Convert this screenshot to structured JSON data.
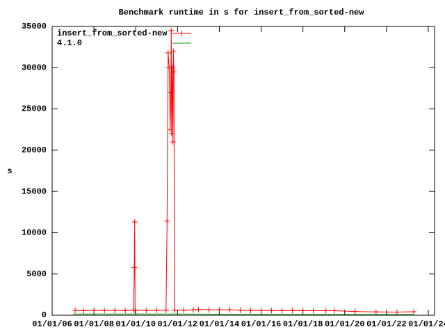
{
  "chart_data": {
    "type": "line",
    "title": "Benchmark runtime in s for insert_from_sorted-new",
    "y_label": "s",
    "xlim": [
      2006,
      2024.3
    ],
    "xticks": [
      {
        "value": 2006,
        "label": "01/01/06"
      },
      {
        "value": 2008,
        "label": "01/01/08"
      },
      {
        "value": 2010,
        "label": "01/01/10"
      },
      {
        "value": 2012,
        "label": "01/01/12"
      },
      {
        "value": 2014,
        "label": "01/01/14"
      },
      {
        "value": 2016,
        "label": "01/01/16"
      },
      {
        "value": 2018,
        "label": "01/01/18"
      },
      {
        "value": 2020,
        "label": "01/01/20"
      },
      {
        "value": 2022,
        "label": "01/01/22"
      },
      {
        "value": 2024,
        "label": "01/01/24"
      }
    ],
    "ylim": [
      0,
      35000
    ],
    "yticks": [
      0,
      5000,
      10000,
      15000,
      20000,
      25000,
      30000,
      35000
    ],
    "grid": false,
    "legend": "top-left",
    "series": [
      {
        "name": "insert_from_sorted-new",
        "color": "#ff0000",
        "markers": true,
        "x": [
          2007.1,
          2007.5,
          2008.0,
          2008.5,
          2009.0,
          2009.5,
          2009.9,
          2009.93,
          2009.95,
          2009.97,
          2010.5,
          2011.0,
          2011.45,
          2011.5,
          2011.55,
          2011.6,
          2011.65,
          2011.68,
          2011.7,
          2011.72,
          2011.75,
          2011.78,
          2011.8,
          2011.83,
          2011.85,
          2012.3,
          2012.75,
          2013.0,
          2013.5,
          2014.0,
          2014.5,
          2015.0,
          2015.5,
          2016.0,
          2016.5,
          2017.0,
          2017.5,
          2018.0,
          2018.5,
          2019.1,
          2019.5,
          2020.5,
          2021.5,
          2022.5,
          2023.3
        ],
        "values": [
          600,
          550,
          600,
          580,
          600,
          560,
          600,
          5800,
          11300,
          600,
          580,
          600,
          600,
          11400,
          31800,
          30000,
          22500,
          27000,
          34500,
          22000,
          30000,
          21000,
          32000,
          29500,
          600,
          600,
          650,
          700,
          650,
          650,
          650,
          600,
          580,
          580,
          560,
          560,
          560,
          560,
          550,
          550,
          550,
          450,
          400,
          380,
          420
        ]
      },
      {
        "name": "4.1.0",
        "color": "#00a000",
        "markers": false,
        "x": [
          2007.0,
          2011.4,
          2015.0,
          2019.0,
          2023.3
        ],
        "values": [
          150,
          150,
          120,
          100,
          100
        ]
      }
    ]
  }
}
